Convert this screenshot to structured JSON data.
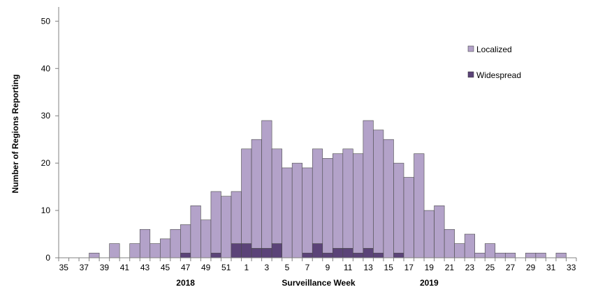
{
  "chart_data": {
    "type": "bar",
    "stacked": true,
    "title": "",
    "xlabel": "Surveillance Week",
    "ylabel": "Number of Regions  Reporting",
    "ylim": [
      0,
      53
    ],
    "yticks": [
      0,
      10,
      20,
      30,
      40,
      50
    ],
    "grid": false,
    "legend_position": "top-right",
    "year_labels": [
      {
        "text": "2018",
        "week": 47
      },
      {
        "text": "2019",
        "week": 19
      }
    ],
    "categories": [
      35,
      36,
      37,
      38,
      39,
      40,
      41,
      42,
      43,
      44,
      45,
      46,
      47,
      48,
      49,
      50,
      51,
      52,
      1,
      2,
      3,
      4,
      5,
      6,
      7,
      8,
      9,
      10,
      11,
      12,
      13,
      14,
      15,
      16,
      17,
      18,
      19,
      20,
      21,
      22,
      23,
      24,
      25,
      26,
      27,
      28,
      29,
      30,
      31,
      32,
      33
    ],
    "tick_labels": [
      "35",
      "37",
      "39",
      "41",
      "43",
      "45",
      "47",
      "49",
      "51",
      "1",
      "3",
      "5",
      "7",
      "9",
      "11",
      "13",
      "15",
      "17",
      "19",
      "21",
      "23",
      "25",
      "27",
      "29",
      "31",
      "33"
    ],
    "series": [
      {
        "name": "Widespread",
        "color": "#5b4378",
        "values": [
          0,
          0,
          0,
          0,
          0,
          0,
          0,
          0,
          0,
          0,
          0,
          0,
          1,
          0,
          0,
          1,
          0,
          3,
          3,
          2,
          2,
          3,
          0,
          0,
          1,
          3,
          1,
          2,
          2,
          1,
          2,
          1,
          0,
          1,
          0,
          0,
          0,
          0,
          0,
          0,
          0,
          0,
          0,
          0,
          0,
          0,
          0,
          0,
          0,
          0,
          0
        ]
      },
      {
        "name": "Localized",
        "color": "#b3a2c9",
        "values": [
          0,
          0,
          0,
          1,
          0,
          3,
          0,
          3,
          6,
          3,
          4,
          6,
          6,
          11,
          8,
          13,
          13,
          11,
          20,
          23,
          27,
          20,
          19,
          20,
          18,
          20,
          20,
          20,
          21,
          21,
          27,
          26,
          25,
          19,
          17,
          22,
          10,
          11,
          6,
          3,
          5,
          1,
          3,
          1,
          1,
          0,
          1,
          1,
          0,
          1,
          0
        ]
      }
    ]
  }
}
